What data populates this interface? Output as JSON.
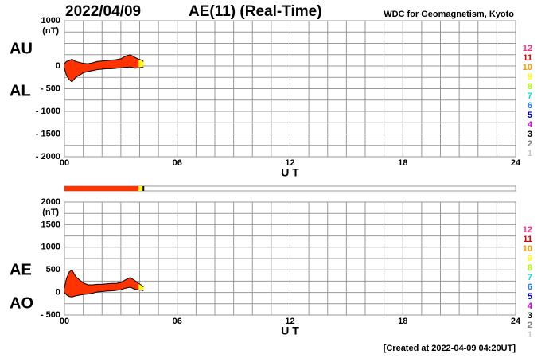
{
  "header": {
    "date": "2022/04/09",
    "title": "AE(11) (Real-Time)",
    "source": "WDC for Geomagnetism, Kyoto"
  },
  "footer": "[Created at 2022-04-09 04:20UT]",
  "chart_data": [
    {
      "type": "area",
      "x": [
        0,
        0.1,
        0.25,
        0.4,
        0.6,
        0.8,
        1,
        1.25,
        1.5,
        1.75,
        2,
        2.25,
        2.5,
        2.75,
        3,
        3.25,
        3.5,
        3.75,
        3.95,
        4.1,
        4.2
      ],
      "series": [
        {
          "name": "AU",
          "values": [
            50,
            100,
            120,
            150,
            100,
            80,
            60,
            50,
            70,
            100,
            110,
            120,
            130,
            140,
            160,
            220,
            250,
            190,
            150,
            130,
            100
          ]
        },
        {
          "name": "AL",
          "values": [
            -50,
            -200,
            -300,
            -350,
            -250,
            -200,
            -150,
            -120,
            -100,
            -80,
            -70,
            -60,
            -60,
            -50,
            -40,
            -30,
            -20,
            -50,
            -40,
            -30,
            -20
          ]
        }
      ],
      "fill_color": "#ff3300",
      "recent_color": "#ffff00",
      "recent_from": 3.95,
      "xlim": [
        0,
        24
      ],
      "xticks": [
        {
          "value": 0,
          "label": "00"
        },
        {
          "value": 6,
          "label": "06"
        },
        12,
        18,
        24
      ],
      "xgrid": [
        0,
        1,
        2,
        3,
        4,
        5,
        6,
        7,
        8,
        9,
        10,
        11,
        12,
        13,
        14,
        15,
        16,
        17,
        18,
        19,
        20,
        21,
        22,
        23,
        24
      ],
      "xlabel": "U T",
      "ylim": [
        -2000,
        1000
      ],
      "yticks": [
        1000,
        0,
        {
          "value": -500,
          "label": "- 500"
        },
        {
          "value": -1000,
          "label": "- 1000"
        },
        {
          "value": -1500,
          "label": "- 1500"
        },
        {
          "value": -2000,
          "label": "- 2000"
        }
      ],
      "ygrid": [
        1000,
        750,
        500,
        250,
        0,
        -250,
        -500,
        -750,
        -1000,
        -1250,
        -1500,
        -1750,
        -2000
      ],
      "yunit": "(nT)",
      "color_scale": [
        {
          "label": "12",
          "color": "#ff2a7f"
        },
        {
          "label": "11",
          "color": "#e00000"
        },
        {
          "label": "10",
          "color": "#ff9900"
        },
        {
          "label": "9",
          "color": "#ffff00"
        },
        {
          "label": "8",
          "color": "#aaff00"
        },
        {
          "label": "7",
          "color": "#00e0e0"
        },
        {
          "label": "6",
          "color": "#1e78ff"
        },
        {
          "label": "5",
          "color": "#0000c0"
        },
        {
          "label": "4",
          "color": "#d000d0"
        },
        {
          "label": "3",
          "color": "#000000"
        },
        {
          "label": "2",
          "color": "#808080"
        },
        {
          "label": "1",
          "color": "#c8c8c8"
        }
      ]
    },
    {
      "type": "strip",
      "xlim": [
        0,
        24
      ],
      "value": 4.2,
      "recent_from": 3.95,
      "fill_color": "#ff3300",
      "recent_color": "#ffff00"
    },
    {
      "type": "area",
      "x": [
        0,
        0.1,
        0.25,
        0.4,
        0.6,
        0.8,
        1,
        1.25,
        1.5,
        1.75,
        2,
        2.25,
        2.5,
        2.75,
        3,
        3.25,
        3.5,
        3.75,
        3.95,
        4.1,
        4.2
      ],
      "series": [
        {
          "name": "AE",
          "values": [
            100,
            300,
            450,
            500,
            350,
            280,
            210,
            170,
            170,
            180,
            180,
            190,
            200,
            200,
            220,
            280,
            330,
            260,
            200,
            160,
            120
          ]
        },
        {
          "name": "AO",
          "values": [
            0,
            -50,
            -90,
            -100,
            -75,
            -60,
            -45,
            -35,
            -15,
            10,
            20,
            30,
            35,
            45,
            60,
            95,
            115,
            70,
            55,
            50,
            40
          ]
        }
      ],
      "fill_color": "#ff3300",
      "recent_color": "#ffff00",
      "recent_from": 3.95,
      "xlim": [
        0,
        24
      ],
      "xticks": [
        {
          "value": 0,
          "label": "00"
        },
        {
          "value": 6,
          "label": "06"
        },
        12,
        18,
        24
      ],
      "xgrid": [
        0,
        1,
        2,
        3,
        4,
        5,
        6,
        7,
        8,
        9,
        10,
        11,
        12,
        13,
        14,
        15,
        16,
        17,
        18,
        19,
        20,
        21,
        22,
        23,
        24
      ],
      "xlabel": "U T",
      "ylim": [
        -500,
        2000
      ],
      "yticks": [
        2000,
        1500,
        1000,
        500,
        0,
        {
          "value": -500,
          "label": "- 500"
        }
      ],
      "ygrid": [
        2000,
        1750,
        1500,
        1250,
        1000,
        750,
        500,
        250,
        0,
        -250,
        -500
      ],
      "yunit": "(nT)",
      "color_scale": [
        {
          "label": "12",
          "color": "#ff2a7f"
        },
        {
          "label": "11",
          "color": "#e00000"
        },
        {
          "label": "10",
          "color": "#ff9900"
        },
        {
          "label": "9",
          "color": "#ffff00"
        },
        {
          "label": "8",
          "color": "#aaff00"
        },
        {
          "label": "7",
          "color": "#00e0e0"
        },
        {
          "label": "6",
          "color": "#1e78ff"
        },
        {
          "label": "5",
          "color": "#0000c0"
        },
        {
          "label": "4",
          "color": "#d000d0"
        },
        {
          "label": "3",
          "color": "#000000"
        },
        {
          "label": "2",
          "color": "#808080"
        },
        {
          "label": "1",
          "color": "#c8c8c8"
        }
      ]
    }
  ]
}
